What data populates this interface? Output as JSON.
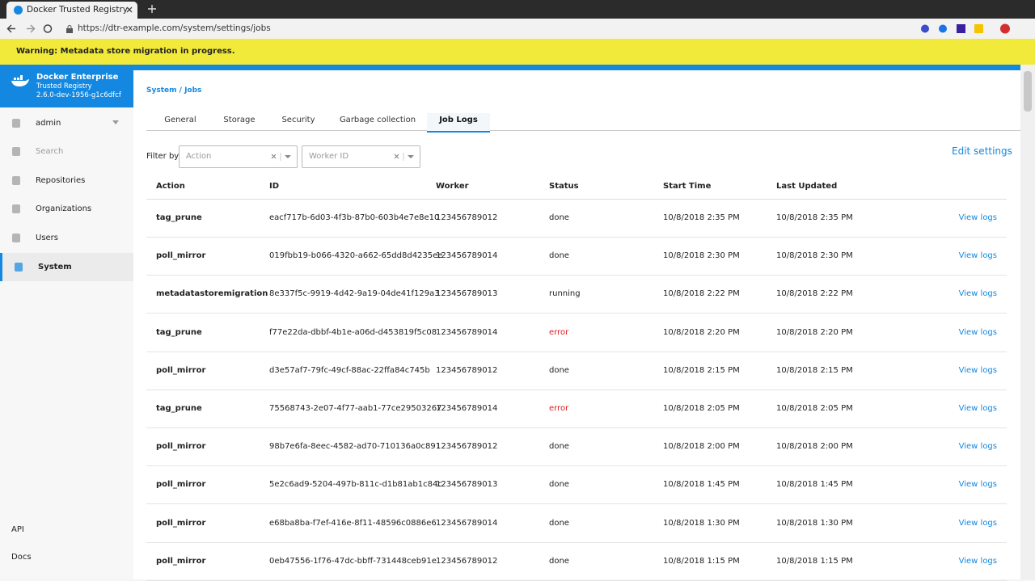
{
  "browser": {
    "tab_title": "Docker Trusted Registry",
    "url": "https://dtr-example.com/system/settings/jobs"
  },
  "warning": "Warning: Metadata store migration in progress.",
  "sidebar": {
    "brand": "Docker Enterprise",
    "product": "Trusted Registry",
    "version": "2.6.0-dev-1956-g1c6dfcf",
    "nav": [
      {
        "label": "admin"
      },
      {
        "label": "Search"
      },
      {
        "label": "Repositories"
      },
      {
        "label": "Organizations"
      },
      {
        "label": "Users"
      },
      {
        "label": "System",
        "active": true
      }
    ],
    "footer": [
      "API",
      "Docs"
    ]
  },
  "breadcrumb": {
    "items": [
      "System",
      "Jobs"
    ],
    "separator": "/"
  },
  "tabs": [
    {
      "label": "General"
    },
    {
      "label": "Storage"
    },
    {
      "label": "Security"
    },
    {
      "label": "Garbage collection"
    },
    {
      "label": "Job Logs",
      "active": true
    }
  ],
  "filter": {
    "label": "Filter by",
    "inputs": [
      "Action",
      "Worker ID"
    ]
  },
  "edit_settings": "Edit settings",
  "table": {
    "headers": [
      "Action",
      "ID",
      "Worker",
      "Status",
      "Start Time",
      "Last Updated"
    ],
    "rows": [
      {
        "action": "tag_prune",
        "id": "eacf717b-6d03-4f3b-87b0-603b4e7e8e10",
        "worker": "123456789012",
        "status": "done",
        "start": "10/8/2018 2:35 PM",
        "updated": "10/8/2018 2:35 PM",
        "link": "View logs"
      },
      {
        "action": "poll_mirror",
        "id": "019fbb19-b066-4320-a662-65dd8d4235ee",
        "worker": "123456789014",
        "status": "done",
        "start": "10/8/2018 2:30 PM",
        "updated": "10/8/2018 2:30 PM",
        "link": "View logs"
      },
      {
        "action": "metadatastoremigration",
        "id": "8e337f5c-9919-4d42-9a19-04de41f129a3",
        "worker": "123456789013",
        "status": "running",
        "start": "10/8/2018 2:22 PM",
        "updated": "10/8/2018 2:22 PM",
        "link": "View logs"
      },
      {
        "action": "tag_prune",
        "id": "f77e22da-dbbf-4b1e-a06d-d453819f5c08",
        "worker": "123456789014",
        "status": "error",
        "status_color": "#e02020",
        "start": "10/8/2018 2:20 PM",
        "updated": "10/8/2018 2:20 PM",
        "link": "View logs"
      },
      {
        "action": "poll_mirror",
        "id": "d3e57af7-79fc-49cf-88ac-22ffa84c745b",
        "worker": "123456789012",
        "status": "done",
        "start": "10/8/2018 2:15 PM",
        "updated": "10/8/2018 2:15 PM",
        "link": "View logs"
      },
      {
        "action": "tag_prune",
        "id": "75568743-2e07-4f77-aab1-77ce29503267",
        "worker": "123456789014",
        "status": "error",
        "status_color": "#e02020",
        "start": "10/8/2018 2:05 PM",
        "updated": "10/8/2018 2:05 PM",
        "link": "View logs"
      },
      {
        "action": "poll_mirror",
        "id": "98b7e6fa-8eec-4582-ad70-710136a0c891",
        "worker": "123456789012",
        "status": "done",
        "start": "10/8/2018 2:00 PM",
        "updated": "10/8/2018 2:00 PM",
        "link": "View logs"
      },
      {
        "action": "poll_mirror",
        "id": "5e2c6ad9-5204-497b-811c-d1b81ab1c84c",
        "worker": "123456789013",
        "status": "done",
        "start": "10/8/2018 1:45 PM",
        "updated": "10/8/2018 1:45 PM",
        "link": "View logs"
      },
      {
        "action": "poll_mirror",
        "id": "e68ba8ba-f7ef-416e-8f11-48596c0886e6",
        "worker": "123456789014",
        "status": "done",
        "start": "10/8/2018 1:30 PM",
        "updated": "10/8/2018 1:30 PM",
        "link": "View logs"
      },
      {
        "action": "poll_mirror",
        "id": "0eb47556-1f76-47dc-bbff-731448ceb91e",
        "worker": "123456789012",
        "status": "done",
        "start": "10/8/2018 1:15 PM",
        "updated": "10/8/2018 1:15 PM",
        "link": "View logs"
      }
    ]
  }
}
